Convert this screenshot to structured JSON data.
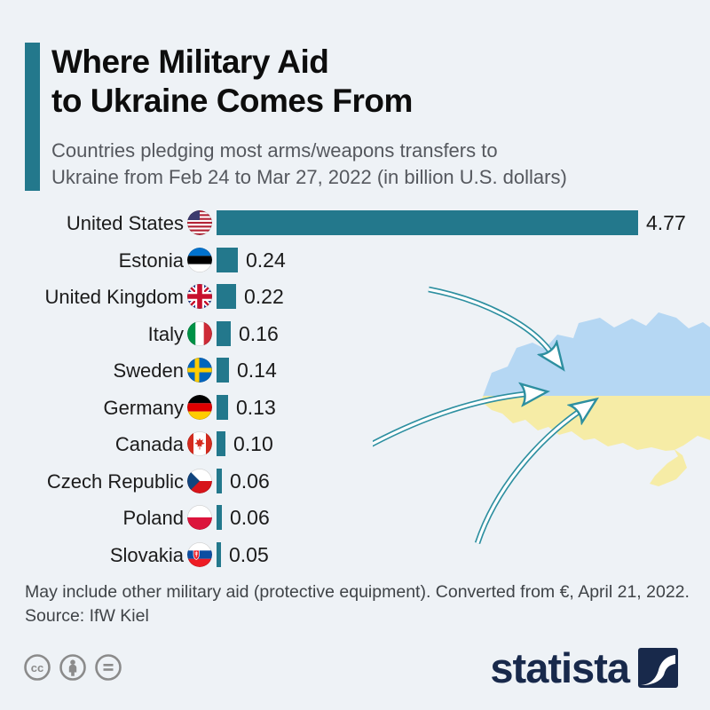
{
  "header": {
    "title_line1": "Where Military Aid",
    "title_line2": "to Ukraine Comes From",
    "subtitle_line1": "Countries pledging most arms/weapons transfers to",
    "subtitle_line2": "Ukraine from Feb 24 to Mar 27, 2022 (in billion U.S. dollars)"
  },
  "chart_data": {
    "type": "bar",
    "orientation": "horizontal",
    "title": "Where Military Aid to Ukraine Comes From",
    "unit": "billion U.S. dollars",
    "xlim": [
      0,
      4.8
    ],
    "grid": false,
    "bar_color": "#23788c",
    "categories": [
      "United States",
      "Estonia",
      "United Kingdom",
      "Italy",
      "Sweden",
      "Germany",
      "Canada",
      "Czech Republic",
      "Poland",
      "Slovakia"
    ],
    "values": [
      4.77,
      0.24,
      0.22,
      0.16,
      0.14,
      0.13,
      0.1,
      0.06,
      0.06,
      0.05
    ],
    "value_labels": [
      "4.77",
      "0.24",
      "0.22",
      "0.16",
      "0.14",
      "0.13",
      "0.10",
      "0.06",
      "0.06",
      "0.05"
    ],
    "flag_icons": [
      "us-flag-icon",
      "estonia-flag-icon",
      "uk-flag-icon",
      "italy-flag-icon",
      "sweden-flag-icon",
      "germany-flag-icon",
      "canada-flag-icon",
      "czech-flag-icon",
      "poland-flag-icon",
      "slovakia-flag-icon"
    ]
  },
  "graphic": {
    "name": "ukraine-map-with-arrows",
    "map_top_color": "#b5d7f3",
    "map_bottom_color": "#f6eca6",
    "arrow_color": "#2d8fa0",
    "arrow_count": 3
  },
  "footnote": {
    "line1": "May include other military aid (protective equipment). Converted from €, April 21, 2022.",
    "line2": "Source: IfW Kiel"
  },
  "footer": {
    "license_icons": [
      "cc-icon",
      "attribution-icon",
      "equal-license-icon"
    ],
    "brand": "statista"
  },
  "colors": {
    "background": "#eef2f6",
    "accent": "#23788c",
    "title": "#0d0d0d",
    "subtitle": "#55585e",
    "footnote": "#3f4347",
    "brand_navy": "#18294b",
    "license_gray": "#8b8b8b"
  }
}
